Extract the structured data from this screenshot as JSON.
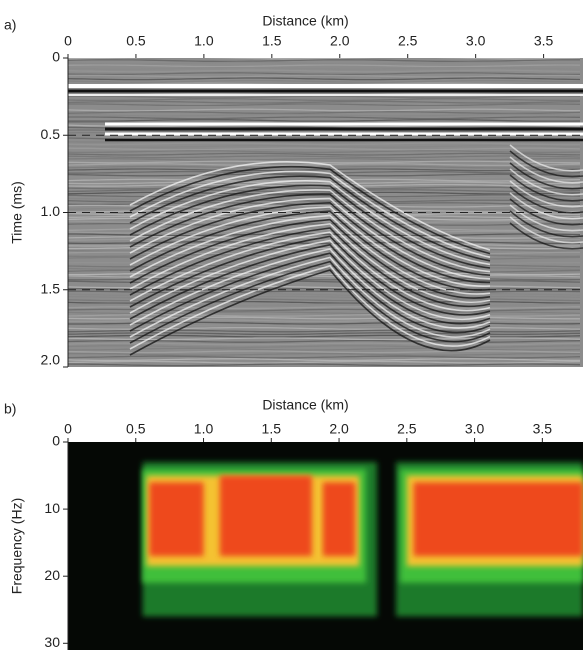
{
  "chart_data": [
    {
      "type": "seismic",
      "panel_label": "a)",
      "xlabel": "Distance (km)",
      "ylabel": "Time (ms)",
      "xlim": [
        0,
        3.79
      ],
      "xticks": [
        0,
        0.5,
        {
          "value": 1,
          "label": "1.0"
        },
        1.5,
        {
          "value": 2,
          "label": "2.0"
        },
        2.5,
        {
          "value": 3,
          "label": "3.0"
        },
        3.5
      ],
      "ylim": [
        0,
        2
      ],
      "yticks": [
        0,
        0.5,
        {
          "value": 1,
          "label": "1.0"
        },
        1.5,
        {
          "value": 2,
          "label": "2.0"
        }
      ],
      "y_inverted": true,
      "grid": true
    },
    {
      "type": "spectrogram",
      "panel_label": "b)",
      "xlabel": "Distance (km)",
      "ylabel": "Frequency (Hz)",
      "xlim": [
        0,
        3.8
      ],
      "xticks": [
        0,
        0.5,
        {
          "value": 1,
          "label": "1.0"
        },
        1.5,
        {
          "value": 2,
          "label": "2.0"
        },
        2.5,
        {
          "value": 3,
          "label": "3.0"
        },
        3.5
      ],
      "ylim": [
        0,
        31
      ],
      "yticks": [
        0,
        10,
        20,
        30
      ],
      "y_inverted": true,
      "grid": false
    }
  ]
}
